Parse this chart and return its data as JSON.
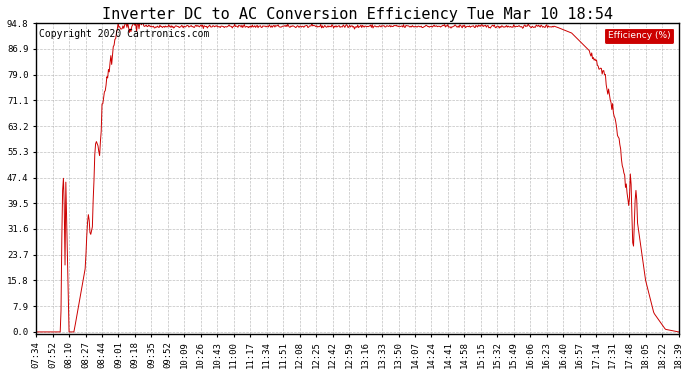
{
  "title": "Inverter DC to AC Conversion Efficiency Tue Mar 10 18:54",
  "copyright": "Copyright 2020 Cartronics.com",
  "legend_label": "Efficiency (%)",
  "legend_bg": "#cc0000",
  "legend_fg": "#ffffff",
  "line_color": "#cc0000",
  "background_color": "#ffffff",
  "plot_bg_color": "#ffffff",
  "grid_color": "#b0b0b0",
  "ylim": [
    -0.5,
    94.8
  ],
  "yticks": [
    0.0,
    7.9,
    15.8,
    23.7,
    31.6,
    39.5,
    47.4,
    55.3,
    63.2,
    71.1,
    79.0,
    86.9,
    94.8
  ],
  "x_labels": [
    "07:34",
    "07:52",
    "08:10",
    "08:27",
    "08:44",
    "09:01",
    "09:18",
    "09:35",
    "09:52",
    "10:09",
    "10:26",
    "10:43",
    "11:00",
    "11:17",
    "11:34",
    "11:51",
    "12:08",
    "12:25",
    "12:42",
    "12:59",
    "13:16",
    "13:33",
    "13:50",
    "14:07",
    "14:24",
    "14:41",
    "14:58",
    "15:15",
    "15:32",
    "15:49",
    "16:06",
    "16:23",
    "16:40",
    "16:57",
    "17:14",
    "17:31",
    "17:48",
    "18:05",
    "18:22",
    "18:39"
  ],
  "title_fontsize": 11,
  "tick_fontsize": 6.5,
  "copyright_fontsize": 7,
  "figsize": [
    6.9,
    3.75
  ],
  "dpi": 100
}
